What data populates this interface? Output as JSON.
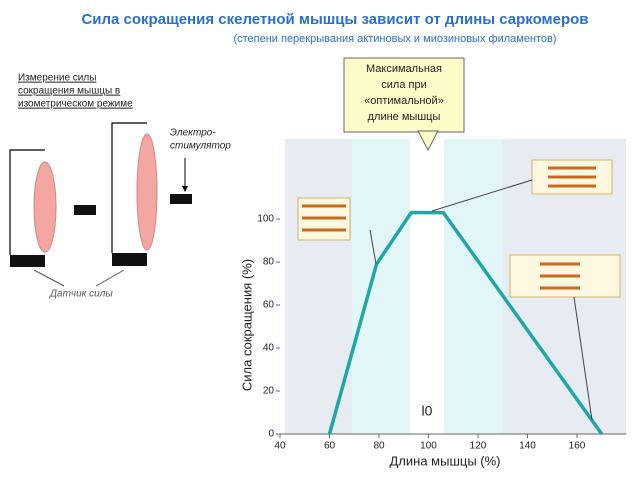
{
  "chart_data": {
    "type": "line",
    "title": "Сила сокращения скелетной мышцы зависит от длины саркомеров",
    "subtitle": "(степени перекрывания актиновых и миозиновых филаментов)",
    "panel_title": [
      "Измерение силы",
      "сокращения мышцы в",
      "изометрическом режиме"
    ],
    "stimulator_label": [
      "Электро-",
      "стимулятор"
    ],
    "sensor_label": "Датчик силы",
    "callout": [
      "Максимальная",
      "сила при",
      "«оптимальной»",
      "длине мышцы"
    ],
    "optimum_label": "l0",
    "xlabel": "Длина мышцы (%)",
    "ylabel": "Сила сокращения  (%)",
    "x": [
      60,
      79,
      93,
      106,
      170
    ],
    "series": [
      {
        "color": "#1fa6a6",
        "values": [
          0,
          79,
          103,
          103,
          0
        ]
      }
    ],
    "xlim": [
      40,
      180
    ],
    "ylim": [
      0,
      137
    ],
    "xticks": [
      40,
      60,
      80,
      100,
      120,
      140,
      160
    ],
    "yticks": [
      0,
      20,
      40,
      60,
      80,
      100
    ]
  }
}
